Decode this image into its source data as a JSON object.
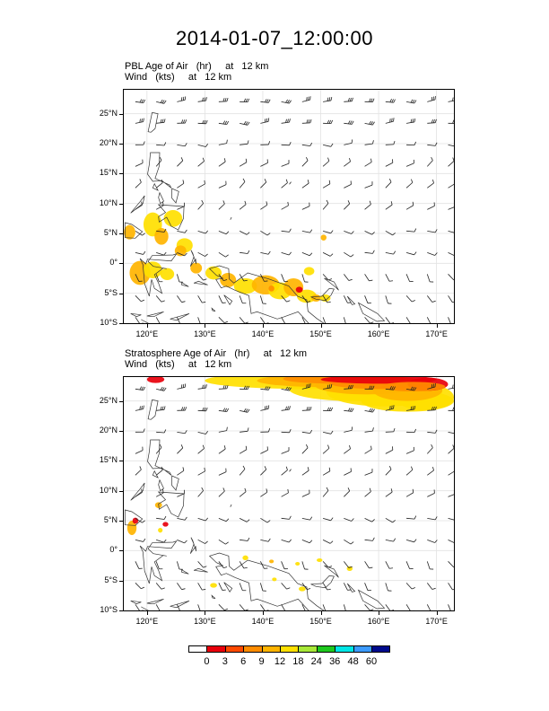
{
  "title": "2014-01-07_12:00:00",
  "panels": [
    {
      "id": "pbl",
      "title_line1": "PBL Age of Air   (hr)     at   12 km",
      "title_line2": "Wind   (kts)     at   12 km"
    },
    {
      "id": "strat",
      "title_line1": "Stratosphere Age of Air   (hr)     at   12 km",
      "title_line2": "Wind   (kts)     at   12 km"
    }
  ],
  "axes": {
    "lon_range": [
      116,
      173
    ],
    "lat_range": [
      -10,
      29
    ],
    "lat_ticks": [
      {
        "value": 25,
        "label": "25°N"
      },
      {
        "value": 20,
        "label": "20°N"
      },
      {
        "value": 15,
        "label": "15°N"
      },
      {
        "value": 10,
        "label": "10°N"
      },
      {
        "value": 5,
        "label": "5°N"
      },
      {
        "value": 0,
        "label": "0°"
      },
      {
        "value": -5,
        "label": "5°S"
      },
      {
        "value": -10,
        "label": "10°S"
      }
    ],
    "lon_ticks": [
      {
        "value": 120,
        "label": "120°E"
      },
      {
        "value": 130,
        "label": "130°E"
      },
      {
        "value": 140,
        "label": "140°E"
      },
      {
        "value": 150,
        "label": "150°E"
      },
      {
        "value": 160,
        "label": "160°E"
      },
      {
        "value": 170,
        "label": "170°E"
      }
    ]
  },
  "colorbar": {
    "labels": [
      "0",
      "3",
      "6",
      "9",
      "12",
      "18",
      "24",
      "36",
      "48",
      "60"
    ],
    "colors": [
      "#ffffff",
      "#e8000b",
      "#ff4a00",
      "#ff8c00",
      "#ffb400",
      "#ffe000",
      "#a8e838",
      "#1ec81e",
      "#00e6e6",
      "#3c9bff",
      "#000a8c"
    ]
  },
  "colors": {
    "fill_low": "#ffe000",
    "fill_mid": "#ffb400",
    "fill_high": "#ff8c00",
    "fill_max": "#e8000b"
  }
}
